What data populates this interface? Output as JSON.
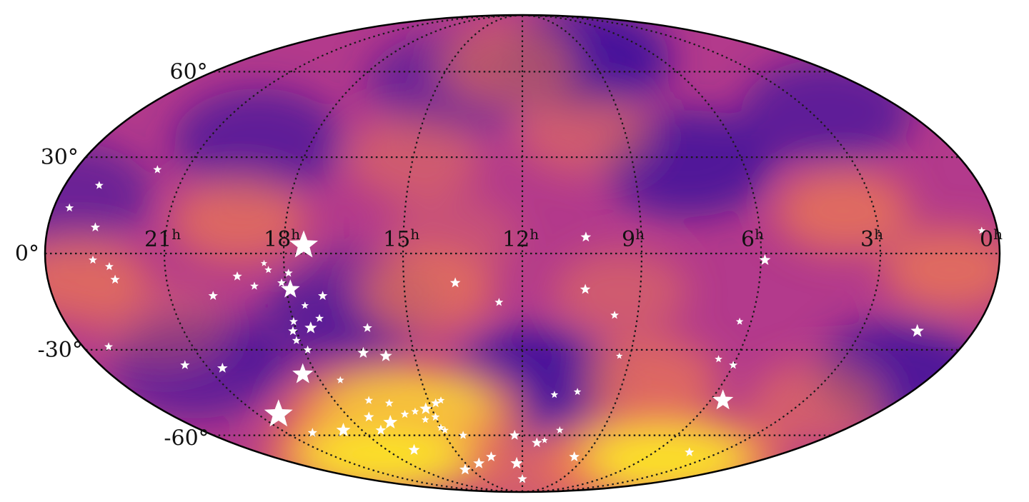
{
  "map": {
    "projection": "mollweide",
    "ra_labels": [
      {
        "hours": 21,
        "text": "21",
        "sup": "h"
      },
      {
        "hours": 18,
        "text": "18",
        "sup": "h"
      },
      {
        "hours": 15,
        "text": "15",
        "sup": "h"
      },
      {
        "hours": 12,
        "text": "12",
        "sup": "h"
      },
      {
        "hours": 9,
        "text": "9",
        "sup": "h"
      },
      {
        "hours": 6,
        "text": "6",
        "sup": "h"
      },
      {
        "hours": 3,
        "text": "3",
        "sup": "h"
      },
      {
        "hours": 0,
        "text": "0",
        "sup": "h"
      }
    ],
    "dec_labels": [
      {
        "deg": 60,
        "text": "60°"
      },
      {
        "deg": 30,
        "text": "30°"
      },
      {
        "deg": 0,
        "text": "0°"
      },
      {
        "deg": -30,
        "text": "-30°"
      },
      {
        "deg": -60,
        "text": "-60°"
      }
    ],
    "colormap": "plasma",
    "colors": {
      "low": "#3a0d9c",
      "mid": "#b33a8c",
      "high": "#ee7b52",
      "peak": "#fde726",
      "star": "#ffffff",
      "grid": "#1a1a1a"
    },
    "heat_blobs": [
      {
        "ra": 19.2,
        "dec": 10,
        "level": 0.7
      },
      {
        "ra": 1.2,
        "dec": -5,
        "level": 0.75
      },
      {
        "ra": 23.2,
        "dec": -8,
        "level": 0.7
      },
      {
        "ra": 3.8,
        "dec": 13,
        "level": 0.75
      },
      {
        "ra": 14.4,
        "dec": -12,
        "level": 0.7
      },
      {
        "ra": 8.2,
        "dec": -40,
        "level": 0.7
      },
      {
        "ra": 5,
        "dec": -70,
        "level": 1.0
      },
      {
        "ra": 16,
        "dec": -51,
        "level": 0.9
      },
      {
        "ra": 18.5,
        "dec": -68,
        "level": 0.9
      },
      {
        "ra": 12.6,
        "dec": 63,
        "level": 0.6
      },
      {
        "ra": 10.2,
        "dec": 38,
        "level": 0.5
      },
      {
        "ra": 15,
        "dec": 30,
        "level": 0.5
      },
      {
        "ra": 9.5,
        "dec": -12,
        "level": 0.5
      },
      {
        "ra": 2.5,
        "dec": -48,
        "level": 0.55
      },
      {
        "ra": 21.5,
        "dec": -22,
        "level": 0.35
      },
      {
        "ra": 11.0,
        "dec": -80,
        "level": 0.55
      },
      {
        "ra": 13.8,
        "dec": 5,
        "level": 0.35
      }
    ],
    "cool_blobs": [
      {
        "ra": 9.3,
        "dec": 65,
        "level": 0.9
      },
      {
        "ra": 7.5,
        "dec": 28,
        "level": 0.8
      },
      {
        "ra": 2.5,
        "dec": 45,
        "level": 0.7
      },
      {
        "ra": 19.5,
        "dec": 35,
        "level": 0.7
      },
      {
        "ra": 11.7,
        "dec": -40,
        "level": 0.9
      },
      {
        "ra": 16.5,
        "dec": -65,
        "level": 0.7
      },
      {
        "ra": 21.3,
        "dec": -35,
        "level": 0.7
      },
      {
        "ra": 23.8,
        "dec": 18,
        "level": 0.6
      },
      {
        "ra": 1.0,
        "dec": -38,
        "level": 0.8
      },
      {
        "ra": 14.5,
        "dec": 55,
        "level": 0.6
      },
      {
        "ra": 16.3,
        "dec": -15,
        "level": 0.5
      },
      {
        "ra": 17.5,
        "dec": -28,
        "level": 0.45
      }
    ],
    "sources": [
      {
        "ra": 17.5,
        "dec": 2.5,
        "size": 3
      },
      {
        "ra": 20.3,
        "dec": -52,
        "size": 3
      },
      {
        "ra": 5.6,
        "dec": -47,
        "size": 2.2
      },
      {
        "ra": 18.4,
        "dec": -38,
        "size": 2.2
      },
      {
        "ra": 17.9,
        "dec": -11,
        "size": 2
      },
      {
        "ra": 16.7,
        "dec": -55,
        "size": 1.5
      },
      {
        "ra": 18.7,
        "dec": -58,
        "size": 1.5
      },
      {
        "ra": 17.6,
        "dec": -23,
        "size": 1.3
      },
      {
        "ra": 15.8,
        "dec": -32,
        "size": 1.3
      },
      {
        "ra": 12.3,
        "dec": -72,
        "size": 1.3
      },
      {
        "ra": 1.5,
        "dec": -24,
        "size": 1.4
      },
      {
        "ra": 5.9,
        "dec": -2,
        "size": 1.2
      },
      {
        "ra": 15.2,
        "dec": -50,
        "size": 1.3
      },
      {
        "ra": 16.8,
        "dec": -66,
        "size": 1.2
      },
      {
        "ra": 15.4,
        "dec": -75,
        "size": 1.2
      },
      {
        "ra": 14.3,
        "dec": -72,
        "size": 1.2
      },
      {
        "ra": 13.5,
        "dec": -69,
        "size": 1.1
      },
      {
        "ra": 12.0,
        "dec": -80,
        "size": 1.0
      },
      {
        "ra": 12.3,
        "dec": -60,
        "size": 1.1
      },
      {
        "ra": 11.4,
        "dec": -63,
        "size": 1.1
      },
      {
        "ra": 9.5,
        "dec": -69,
        "size": 1.1
      },
      {
        "ra": 4.4,
        "dec": -67,
        "size": 1.0
      },
      {
        "ra": 10.4,
        "dec": 5,
        "size": 1.1
      },
      {
        "ra": 10.4,
        "dec": -11,
        "size": 1.1
      },
      {
        "ra": 13.7,
        "dec": -9,
        "size": 1.1
      },
      {
        "ra": 12.6,
        "dec": -15,
        "size": 0.9
      },
      {
        "ra": 9.6,
        "dec": -19,
        "size": 0.9
      },
      {
        "ra": 6.3,
        "dec": -21,
        "size": 0.8
      },
      {
        "ra": 6.0,
        "dec": -35,
        "size": 0.9
      },
      {
        "ra": 6.5,
        "dec": -33,
        "size": 0.8
      },
      {
        "ra": 9.3,
        "dec": -32,
        "size": 0.7
      },
      {
        "ra": 10.3,
        "dec": -44,
        "size": 0.8
      },
      {
        "ra": 11.0,
        "dec": -45,
        "size": 0.8
      },
      {
        "ra": 10.6,
        "dec": -58,
        "size": 0.8
      },
      {
        "ra": 11.1,
        "dec": -62,
        "size": 0.7
      },
      {
        "ra": 0.4,
        "dec": 7,
        "size": 0.8
      },
      {
        "ra": 16.4,
        "dec": -31,
        "size": 1.2
      },
      {
        "ra": 16.1,
        "dec": -23,
        "size": 1.0
      },
      {
        "ra": 17.1,
        "dec": -13,
        "size": 1.0
      },
      {
        "ra": 17.3,
        "dec": -20,
        "size": 0.9
      },
      {
        "ra": 17.6,
        "dec": -16,
        "size": 0.8
      },
      {
        "ra": 18.0,
        "dec": -21,
        "size": 0.9
      },
      {
        "ra": 18.1,
        "dec": -24,
        "size": 1.0
      },
      {
        "ra": 18.1,
        "dec": -27,
        "size": 0.9
      },
      {
        "ra": 17.9,
        "dec": -30,
        "size": 0.9
      },
      {
        "ra": 17.9,
        "dec": -6,
        "size": 0.9
      },
      {
        "ra": 18.1,
        "dec": -9,
        "size": 0.9
      },
      {
        "ra": 18.4,
        "dec": -5,
        "size": 0.8
      },
      {
        "ra": 18.5,
        "dec": -3,
        "size": 0.7
      },
      {
        "ra": 18.8,
        "dec": -10,
        "size": 0.9
      },
      {
        "ra": 19.2,
        "dec": -7,
        "size": 1.0
      },
      {
        "ra": 19.9,
        "dec": -13,
        "size": 1.0
      },
      {
        "ra": 17.3,
        "dec": -53,
        "size": 1.1
      },
      {
        "ra": 17.3,
        "dec": -58,
        "size": 1.1
      },
      {
        "ra": 16.9,
        "dec": -47,
        "size": 0.9
      },
      {
        "ra": 17.4,
        "dec": -40,
        "size": 0.8
      },
      {
        "ra": 16.3,
        "dec": -48,
        "size": 0.9
      },
      {
        "ra": 16.0,
        "dec": -52,
        "size": 0.9
      },
      {
        "ra": 15.6,
        "dec": -51,
        "size": 0.8
      },
      {
        "ra": 15.4,
        "dec": -54,
        "size": 0.8
      },
      {
        "ra": 15.0,
        "dec": -53,
        "size": 0.9
      },
      {
        "ra": 14.8,
        "dec": -48,
        "size": 1.0
      },
      {
        "ra": 14.6,
        "dec": -47,
        "size": 0.8
      },
      {
        "ra": 14.3,
        "dec": -60,
        "size": 0.9
      },
      {
        "ra": 15.0,
        "dec": -57,
        "size": 0.8
      },
      {
        "ra": 14.9,
        "dec": -58,
        "size": 0.8
      },
      {
        "ra": 21.6,
        "dec": -35,
        "size": 1.0
      },
      {
        "ra": 20.6,
        "dec": -36,
        "size": 1.1
      },
      {
        "ra": 20.0,
        "dec": -59,
        "size": 1.0
      },
      {
        "ra": 23.6,
        "dec": 14,
        "size": 0.9
      },
      {
        "ra": 22.8,
        "dec": 8,
        "size": 1.0
      },
      {
        "ra": 23.1,
        "dec": 21,
        "size": 0.9
      },
      {
        "ra": 21.8,
        "dec": 26,
        "size": 0.9
      },
      {
        "ra": 22.8,
        "dec": -2,
        "size": 0.9
      },
      {
        "ra": 22.4,
        "dec": -4,
        "size": 0.9
      },
      {
        "ra": 22.3,
        "dec": -8,
        "size": 1.0
      },
      {
        "ra": 23.3,
        "dec": -29,
        "size": 0.9
      }
    ]
  }
}
